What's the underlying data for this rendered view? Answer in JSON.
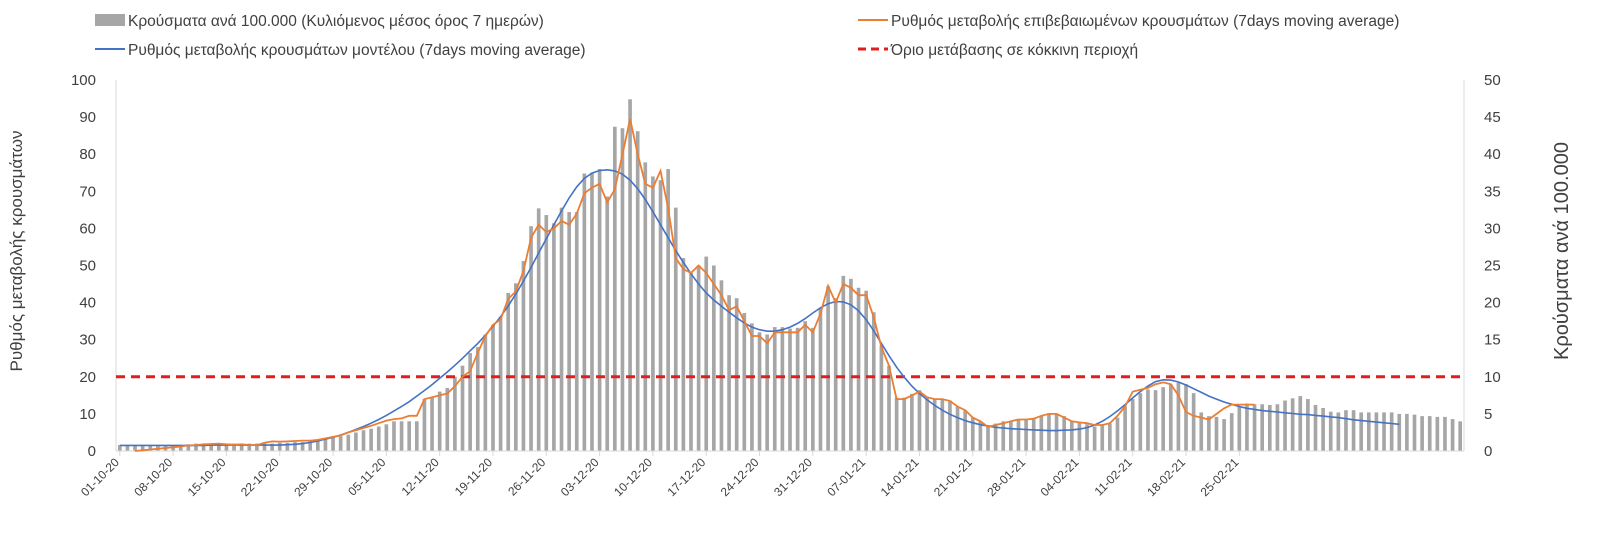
{
  "chart_data": {
    "type": "bar+line",
    "title": "",
    "ylabel_left": "Ρυθμός μεταβολής κρουσμάτων",
    "ylabel_right": "Κρούσματα ανά 100.000",
    "ylim_left": [
      0,
      100
    ],
    "ylim_right": [
      0,
      50
    ],
    "yticks_left": [
      "0",
      "10",
      "20",
      "30",
      "40",
      "50",
      "60",
      "70",
      "80",
      "90",
      "100"
    ],
    "yticks_right": [
      "0",
      "5",
      "10",
      "15",
      "20",
      "25",
      "30",
      "35",
      "40",
      "45",
      "50"
    ],
    "x_tick_labels": [
      "01-10-20",
      "08-10-20",
      "15-10-20",
      "22-10-20",
      "29-10-20",
      "05-11-20",
      "12-11-20",
      "19-11-20",
      "26-11-20",
      "03-12-20",
      "10-12-20",
      "17-12-20",
      "24-12-20",
      "31-12-20",
      "07-01-21",
      "14-01-21",
      "21-01-21",
      "28-01-21",
      "04-02-21",
      "11-02-21",
      "18-02-21",
      "25-02-21"
    ],
    "legend": {
      "bars": "Κρούσματα ανά 100.000 (Κυλιόμενος μέσος όρος 7 ημερών)",
      "orange": "Ρυθμός μεταβολής επιβεβαιωμένων κρουσμάτων (7days moving average)",
      "blue": "Ρυθμός μεταβολής κρουσμάτων μοντέλου (7days moving average)",
      "threshold": "Όριο μετάβασης σε κόκκινη περιοχή"
    },
    "colors": {
      "bars": "#a6a6a6",
      "orange": "#ed7d31",
      "blue": "#4472c4",
      "threshold": "#e01e1e",
      "axis": "#d9d9d9",
      "text": "#404040"
    },
    "threshold_value": 20,
    "bars_per_100k": [
      0.8,
      0.8,
      0.8,
      0.8,
      0.8,
      0.8,
      0.8,
      0.8,
      0.8,
      0.9,
      1.0,
      1.0,
      1.0,
      1.0,
      1.0,
      1.0,
      1.0,
      1.0,
      1.0,
      1.0,
      1.0,
      1.1,
      1.1,
      1.2,
      1.2,
      1.3,
      1.4,
      1.6,
      1.8,
      2.0,
      2.2,
      2.5,
      2.8,
      3.0,
      3.3,
      3.6,
      4.0,
      4.0,
      4.0,
      4.0,
      7.0,
      7.2,
      8.0,
      8.5,
      10.0,
      11.5,
      13.2,
      14.0,
      15.7,
      17.0,
      18.1,
      21.3,
      22.6,
      25.6,
      30.3,
      32.7,
      31.8,
      30.7,
      32.8,
      32.2,
      32.2,
      37.4,
      37.5,
      38.0,
      34.3,
      43.7,
      43.5,
      47.4,
      43.1,
      38.9,
      37.0,
      36.5,
      38.0,
      32.8,
      26.0,
      24.0,
      25.0,
      26.2,
      25.0,
      23.0,
      21.0,
      20.6,
      18.6,
      17.2,
      16.0,
      15.7,
      16.7,
      16.7,
      16.5,
      16.6,
      17.5,
      16.6,
      19.2,
      22.2,
      20.6,
      23.6,
      23.2,
      22.0,
      21.6,
      18.7,
      14.2,
      11.5,
      7.2,
      7.2,
      7.7,
      8.2,
      7.2,
      7.0,
      7.0,
      6.8,
      6.0,
      5.5,
      4.5,
      4.0,
      3.5,
      3.7,
      4.0,
      4.0,
      4.2,
      4.2,
      4.3,
      4.7,
      5.0,
      5.0,
      4.7,
      4.0,
      3.8,
      3.6,
      3.3,
      3.5,
      3.7,
      4.5,
      6.0,
      7.0,
      7.8,
      8.3,
      8.2,
      8.6,
      9.0,
      9.2,
      9.0,
      7.8,
      5.2,
      4.7,
      4.6,
      4.3,
      5.1,
      6.0,
      6.4,
      6.3,
      6.3,
      6.2,
      6.3,
      6.8,
      7.1,
      7.4,
      7.0,
      6.2,
      5.8,
      5.3,
      5.2,
      5.5,
      5.5,
      5.2,
      5.2,
      5.2,
      5.2,
      5.2,
      5.0,
      5.0,
      4.9,
      4.7,
      4.7,
      4.6,
      4.6,
      4.3,
      4.0
    ],
    "orange_rate": [
      null,
      null,
      0,
      0.2,
      0.4,
      0.6,
      0.8,
      1.0,
      1.2,
      1.5,
      1.6,
      1.8,
      1.9,
      2.0,
      1.8,
      1.7,
      1.8,
      1.6,
      1.6,
      2.2,
      2.6,
      2.5,
      2.6,
      2.7,
      2.8,
      2.8,
      3.0,
      3.4,
      3.8,
      4.2,
      5.0,
      5.6,
      6.2,
      6.8,
      7.5,
      8.2,
      8.6,
      8.8,
      9.5,
      9.5,
      14.0,
      14.5,
      15.0,
      15.5,
      17.5,
      20.0,
      21.5,
      26.5,
      31.0,
      34.0,
      35.5,
      41.0,
      43.0,
      48.5,
      57.5,
      61.0,
      59.0,
      60.0,
      62.0,
      61.0,
      64.0,
      69.5,
      71.0,
      72.0,
      67.0,
      70.5,
      80.0,
      89.5,
      80.0,
      72.0,
      71.0,
      75.5,
      65.5,
      52.0,
      49.0,
      48.0,
      50.0,
      48.0,
      45.0,
      42.0,
      38.0,
      39.0,
      35.0,
      31.0,
      31.0,
      29.0,
      32.0,
      32.0,
      32.0,
      32.0,
      34.0,
      32.0,
      37.0,
      44.5,
      40.0,
      45.0,
      44.0,
      42.0,
      42.0,
      36.0,
      28.0,
      23.0,
      14.0,
      14.0,
      15.0,
      16.0,
      14.5,
      14.0,
      14.0,
      13.5,
      12.0,
      11.0,
      9.0,
      8.0,
      6.5,
      7.0,
      7.5,
      8.0,
      8.5,
      8.5,
      8.7,
      9.5,
      10.0,
      10.0,
      9.0,
      8.0,
      7.7,
      7.5,
      7.0,
      7.0,
      7.5,
      9.5,
      12.0,
      16.0,
      16.5,
      17.0,
      18.0,
      18.5,
      18.0,
      15.0,
      10.5,
      9.5,
      9.0,
      8.5,
      10.0,
      11.5,
      12.5,
      12.5,
      12.5,
      12.5,
      null,
      null,
      null,
      null,
      null,
      null,
      null,
      null,
      null,
      null,
      null,
      null,
      null,
      null,
      null,
      null,
      null,
      null,
      null,
      null,
      null,
      null,
      null,
      null,
      null
    ],
    "blue_model": [
      1.5,
      1.5,
      1.5,
      1.5,
      1.5,
      1.5,
      1.5,
      1.5,
      1.5,
      1.5,
      1.5,
      1.5,
      1.6,
      1.6,
      1.6,
      1.6,
      1.6,
      1.6,
      1.6,
      1.6,
      1.6,
      1.6,
      1.7,
      1.8,
      2.0,
      2.3,
      2.7,
      3.2,
      3.7,
      4.3,
      5.0,
      5.8,
      6.6,
      7.5,
      8.5,
      9.6,
      10.8,
      12.0,
      13.3,
      14.8,
      16.3,
      17.9,
      19.6,
      21.3,
      23.1,
      25.0,
      27.0,
      29.0,
      31.2,
      33.6,
      36.2,
      39.1,
      42.3,
      45.8,
      49.5,
      53.4,
      57.2,
      61.0,
      64.7,
      68.2,
      71.2,
      73.5,
      74.9,
      75.6,
      75.8,
      75.5,
      74.6,
      73.0,
      70.7,
      67.8,
      64.5,
      61.0,
      57.5,
      54.0,
      50.8,
      47.8,
      45.0,
      42.6,
      40.7,
      39.0,
      37.4,
      35.9,
      34.5,
      33.4,
      32.7,
      32.3,
      32.3,
      32.7,
      33.4,
      34.4,
      35.7,
      37.2,
      38.6,
      39.7,
      40.3,
      40.2,
      39.4,
      37.8,
      35.4,
      32.4,
      29.0,
      25.7,
      22.6,
      19.9,
      17.5,
      15.5,
      13.8,
      12.3,
      11.0,
      9.9,
      9.0,
      8.2,
      7.6,
      7.1,
      6.7,
      6.4,
      6.2,
      6.0,
      5.9,
      5.8,
      5.7,
      5.6,
      5.5,
      5.5,
      5.6,
      5.7,
      5.9,
      6.3,
      7.0,
      8.0,
      9.3,
      10.8,
      12.5,
      14.3,
      16.0,
      17.5,
      18.7,
      19.2,
      19.1,
      18.6,
      17.8,
      16.8,
      15.8,
      14.8,
      14.0,
      13.2,
      12.6,
      12.0,
      11.5,
      11.2,
      10.9,
      10.7,
      10.5,
      10.3,
      10.1,
      9.9,
      9.8,
      9.6,
      9.4,
      9.2,
      9.0,
      8.7,
      8.4,
      8.2,
      8.0,
      7.8,
      7.6,
      7.4,
      7.2
    ]
  }
}
